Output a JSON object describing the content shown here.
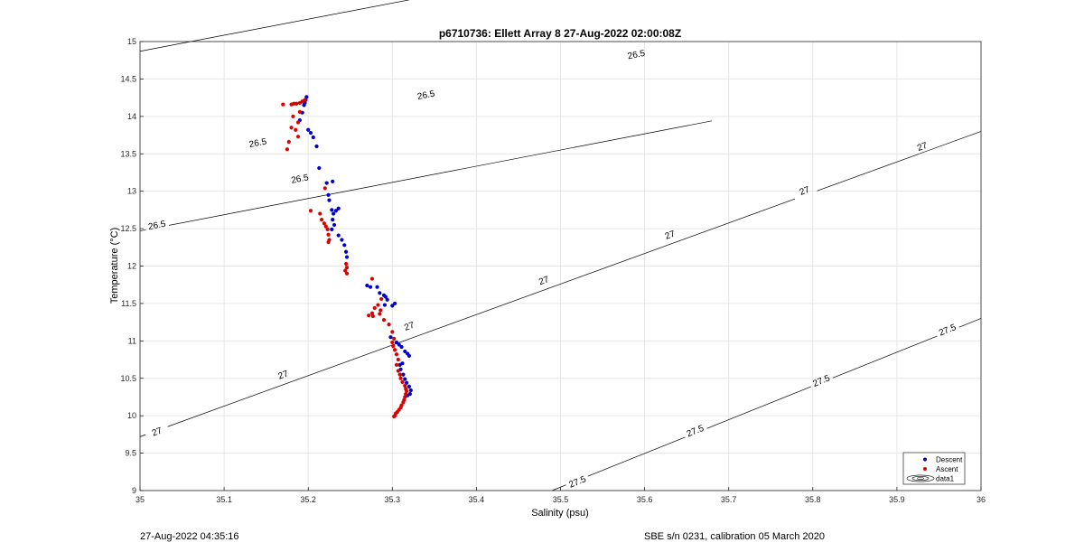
{
  "footer": {
    "timestamp": "27-Aug-2022 04:35:16",
    "calibration": "SBE s/n 0231, calibration 05 March 2020"
  },
  "chart_data": {
    "type": "scatter",
    "title": "p6710736: Ellett Array 8 27-Aug-2022 02:00:08Z",
    "xlabel": "Salinity (psu)",
    "ylabel": "Temperature (°C)",
    "xlim": [
      35,
      36
    ],
    "ylim": [
      9,
      15
    ],
    "xticks": [
      "35",
      "35.1",
      "35.2",
      "35.3",
      "35.4",
      "35.5",
      "35.6",
      "35.7",
      "35.8",
      "35.9",
      "36"
    ],
    "yticks": [
      "9",
      "9.5",
      "10",
      "10.5",
      "11",
      "11.5",
      "12",
      "12.5",
      "13",
      "13.5",
      "14",
      "14.5",
      "15"
    ],
    "grid": true,
    "legend_position": "bottom-right",
    "legend": [
      "Descent",
      "Ascent",
      "data1"
    ],
    "colors": {
      "descent": "#0000cc",
      "ascent": "#dd0000",
      "contour": "#000000",
      "grid": "#e6e6e6"
    },
    "contours": [
      {
        "level": "26.5",
        "lines": [
          [
            [
              35.0,
              14.87
            ],
            [
              35.68,
              16.33
            ]
          ],
          [
            [
              35.0,
              12.47
            ],
            [
              35.68,
              13.94
            ]
          ]
        ],
        "labels": [
          {
            "x": 35.59,
            "y": 14.83
          },
          {
            "x": 35.34,
            "y": 14.29
          },
          {
            "x": 35.14,
            "y": 13.65
          },
          {
            "x": 35.19,
            "y": 13.17
          },
          {
            "x": 35.02,
            "y": 12.55
          }
        ]
      },
      {
        "level": "27",
        "lines": [
          [
            [
              35.0,
              9.72
            ],
            [
              36.0,
              13.8
            ]
          ]
        ],
        "labels": [
          {
            "x": 35.93,
            "y": 13.6
          },
          {
            "x": 35.79,
            "y": 13.01
          },
          {
            "x": 35.63,
            "y": 12.42
          },
          {
            "x": 35.48,
            "y": 11.81
          },
          {
            "x": 35.32,
            "y": 11.2
          },
          {
            "x": 35.17,
            "y": 10.55
          },
          {
            "x": 35.02,
            "y": 9.79
          }
        ]
      },
      {
        "level": "27.5",
        "lines": [
          [
            [
              35.49,
              9.0
            ],
            [
              36.0,
              11.3
            ]
          ]
        ],
        "labels": [
          {
            "x": 35.96,
            "y": 11.15
          },
          {
            "x": 35.81,
            "y": 10.47
          },
          {
            "x": 35.66,
            "y": 9.8
          },
          {
            "x": 35.52,
            "y": 9.12
          }
        ]
      }
    ],
    "series": [
      {
        "name": "Descent",
        "points": [
          [
            35.198,
            14.26
          ],
          [
            35.197,
            14.22
          ],
          [
            35.196,
            14.18
          ],
          [
            35.195,
            14.15
          ],
          [
            35.193,
            14.05
          ],
          [
            35.19,
            13.95
          ],
          [
            35.2,
            13.82
          ],
          [
            35.203,
            13.78
          ],
          [
            35.206,
            13.72
          ],
          [
            35.21,
            13.6
          ],
          [
            35.213,
            13.31
          ],
          [
            35.222,
            13.11
          ],
          [
            35.229,
            13.13
          ],
          [
            35.224,
            12.95
          ],
          [
            35.225,
            12.88
          ],
          [
            35.228,
            12.75
          ],
          [
            35.23,
            12.7
          ],
          [
            35.233,
            12.74
          ],
          [
            35.236,
            12.77
          ],
          [
            35.229,
            12.62
          ],
          [
            35.231,
            12.55
          ],
          [
            35.228,
            12.49
          ],
          [
            35.236,
            12.41
          ],
          [
            35.24,
            12.35
          ],
          [
            35.243,
            12.28
          ],
          [
            35.245,
            12.19
          ],
          [
            35.246,
            12.12
          ],
          [
            35.27,
            11.74
          ],
          [
            35.274,
            11.72
          ],
          [
            35.282,
            11.72
          ],
          [
            35.285,
            11.64
          ],
          [
            35.29,
            11.61
          ],
          [
            35.292,
            11.59
          ],
          [
            35.294,
            11.55
          ],
          [
            35.291,
            11.48
          ],
          [
            35.3,
            11.47
          ],
          [
            35.303,
            11.5
          ],
          [
            35.298,
            11.05
          ],
          [
            35.305,
            10.98
          ],
          [
            35.308,
            10.95
          ],
          [
            35.311,
            10.92
          ],
          [
            35.315,
            10.86
          ],
          [
            35.318,
            10.83
          ],
          [
            35.32,
            10.8
          ],
          [
            35.312,
            10.7
          ],
          [
            35.309,
            10.68
          ],
          [
            35.31,
            10.62
          ],
          [
            35.313,
            10.55
          ],
          [
            35.315,
            10.49
          ],
          [
            35.317,
            10.44
          ],
          [
            35.32,
            10.39
          ],
          [
            35.322,
            10.34
          ],
          [
            35.321,
            10.29
          ],
          [
            35.318,
            10.27
          ]
        ]
      },
      {
        "name": "Ascent",
        "points": [
          [
            35.17,
            14.16
          ],
          [
            35.18,
            14.16
          ],
          [
            35.183,
            14.17
          ],
          [
            35.186,
            14.17
          ],
          [
            35.19,
            14.18
          ],
          [
            35.193,
            14.2
          ],
          [
            35.196,
            14.22
          ],
          [
            35.19,
            14.06
          ],
          [
            35.182,
            14.0
          ],
          [
            35.188,
            13.92
          ],
          [
            35.18,
            13.85
          ],
          [
            35.185,
            13.82
          ],
          [
            35.188,
            13.73
          ],
          [
            35.177,
            13.66
          ],
          [
            35.175,
            13.56
          ],
          [
            35.22,
            13.04
          ],
          [
            35.203,
            12.74
          ],
          [
            35.214,
            12.7
          ],
          [
            35.216,
            12.62
          ],
          [
            35.219,
            12.57
          ],
          [
            35.221,
            12.53
          ],
          [
            35.223,
            12.49
          ],
          [
            35.224,
            12.42
          ],
          [
            35.225,
            12.35
          ],
          [
            35.224,
            12.32
          ],
          [
            35.245,
            12.03
          ],
          [
            35.246,
            11.98
          ],
          [
            35.244,
            11.94
          ],
          [
            35.246,
            11.9
          ],
          [
            35.276,
            11.83
          ],
          [
            35.287,
            11.56
          ],
          [
            35.283,
            11.48
          ],
          [
            35.279,
            11.44
          ],
          [
            35.286,
            11.41
          ],
          [
            35.276,
            11.37
          ],
          [
            35.272,
            11.34
          ],
          [
            35.277,
            11.33
          ],
          [
            35.285,
            11.36
          ],
          [
            35.29,
            11.28
          ],
          [
            35.296,
            11.22
          ],
          [
            35.3,
            11.12
          ],
          [
            35.302,
            11.03
          ],
          [
            35.3,
            10.98
          ],
          [
            35.301,
            10.93
          ],
          [
            35.303,
            10.88
          ],
          [
            35.305,
            10.82
          ],
          [
            35.307,
            10.75
          ],
          [
            35.305,
            10.68
          ],
          [
            35.307,
            10.6
          ],
          [
            35.309,
            10.55
          ],
          [
            35.31,
            10.5
          ],
          [
            35.312,
            10.45
          ],
          [
            35.315,
            10.4
          ],
          [
            35.316,
            10.36
          ],
          [
            35.317,
            10.33
          ],
          [
            35.316,
            10.29
          ],
          [
            35.315,
            10.25
          ],
          [
            35.314,
            10.21
          ],
          [
            35.313,
            10.18
          ],
          [
            35.311,
            10.14
          ],
          [
            35.31,
            10.11
          ],
          [
            35.308,
            10.08
          ],
          [
            35.306,
            10.05
          ],
          [
            35.304,
            10.03
          ],
          [
            35.303,
            10.0
          ],
          [
            35.302,
            9.99
          ]
        ]
      }
    ]
  }
}
